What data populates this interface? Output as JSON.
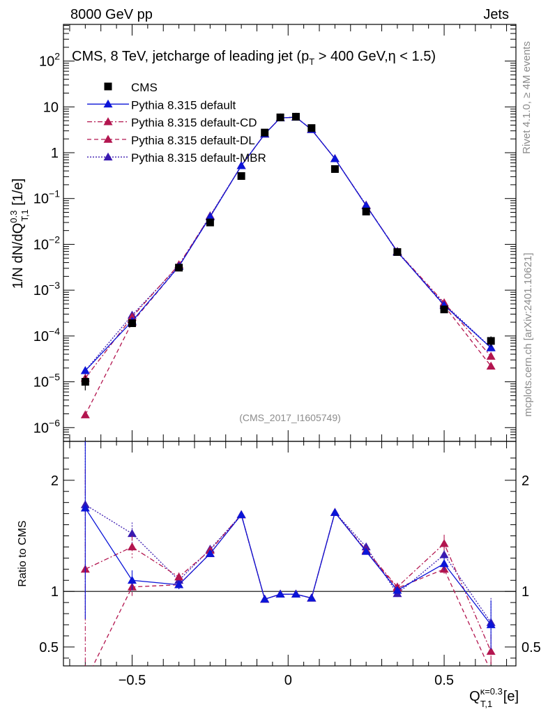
{
  "header": {
    "left": "8000 GeV pp",
    "right": "Jets"
  },
  "side_labels": {
    "rivet": "Rivet 4.1.0, ≥ 4M events",
    "mcplots": "mcplots.cern.ch [arXiv:2401.10621]"
  },
  "title": {
    "pre": "CMS, 8 TeV, jetcharge of leading jet (p",
    "sub": "T",
    "post": " > 400 GeV,η < 1.5)"
  },
  "reference_label": "(CMS_2017_I1605749)",
  "ylabel": {
    "pre": "1/N dN/dQ",
    "sup": "0.3",
    "sub": "T,1",
    "post": " [1/e]"
  },
  "ratio_ylabel": "Ratio to CMS",
  "xlabel": {
    "pre": "Q",
    "sup": "κ=0.3",
    "sub": "T,1",
    "post": " [e]"
  },
  "colors": {
    "data": "#000000",
    "default": "#0b15d8",
    "cd": "#b3154f",
    "dl": "#b3154f",
    "mbr": "#3a1ab0",
    "frame": "#000000",
    "side": "#8c8c8c"
  },
  "chart_data": {
    "type": "line",
    "title": "CMS, 8 TeV, jetcharge of leading jet (pT > 400 GeV,η < 1.5)",
    "xlim": [
      -0.72,
      0.73
    ],
    "main_ylim_log10": [
      -6.3,
      2.8
    ],
    "ratio_ylim": [
      0.33,
      2.35
    ],
    "x": [
      -0.65,
      -0.5,
      -0.35,
      -0.25,
      -0.15,
      -0.075,
      -0.025,
      0.025,
      0.075,
      0.15,
      0.25,
      0.35,
      0.5,
      0.65
    ],
    "x_ticks": {
      "positions": [
        -0.5,
        0,
        0.5
      ],
      "labels": [
        "−0.5",
        "0",
        "0.5"
      ]
    },
    "main_y_ticks": {
      "exps": [
        -6,
        -5,
        -4,
        -3,
        -2,
        -1,
        0,
        1,
        2
      ],
      "labels": [
        "10",
        "10",
        "10",
        "10",
        "10",
        "10",
        "1",
        "10",
        "10"
      ],
      "exp_labels": [
        "−6",
        "−5",
        "−4",
        "−3",
        "−2",
        "−1",
        "",
        "",
        "2"
      ]
    },
    "ratio_y_ticks": {
      "values": [
        0.5,
        1,
        2
      ],
      "labels": [
        "0.5",
        "1",
        "2"
      ]
    },
    "data": {
      "name": "CMS",
      "values": [
        1e-05,
        0.00019,
        0.0031,
        0.03,
        0.31,
        2.75,
        5.9,
        6.1,
        3.45,
        0.44,
        0.052,
        0.0068,
        0.00038,
        7.8e-05
      ],
      "errors": [
        3.5e-06,
        1.5e-05,
        0.00015,
        0.0012,
        0.008,
        0.06,
        0.1,
        0.1,
        0.07,
        0.01,
        0.0015,
        0.0002,
        3e-05,
        2e-05
      ]
    },
    "series": [
      {
        "name": "Pythia 8.315 default",
        "style": "solid",
        "values": [
          1.75e-05,
          0.00021,
          0.0033,
          0.04,
          0.52,
          2.55,
          5.75,
          5.95,
          3.2,
          0.74,
          0.07,
          0.0069,
          0.00047,
          5.5e-05
        ],
        "ratio": [
          1.75,
          1.1,
          1.06,
          1.34,
          1.69,
          0.93,
          0.975,
          0.975,
          0.94,
          1.71,
          1.36,
          1.01,
          1.25,
          0.7
        ],
        "ratio_err": [
          1.0,
          0.09,
          0.04,
          0.02,
          0.01,
          0.005,
          0.005,
          0.005,
          0.005,
          0.01,
          0.02,
          0.03,
          0.06,
          0.22
        ]
      },
      {
        "name": "Pythia 8.315 default-CD",
        "style": "dashdot",
        "values": [
          1.2e-05,
          0.00026,
          0.0036,
          0.041,
          0.52,
          2.55,
          5.75,
          5.95,
          3.2,
          0.74,
          0.071,
          0.007,
          0.00053,
          3.6e-05
        ],
        "ratio": [
          1.2,
          1.4,
          1.13,
          1.37,
          1.69,
          0.93,
          0.975,
          0.975,
          0.94,
          1.71,
          1.37,
          1.04,
          1.43,
          0.46
        ],
        "ratio_err": [
          0.9,
          0.1,
          0.04,
          0.02,
          0.01,
          0.005,
          0.005,
          0.005,
          0.005,
          0.01,
          0.02,
          0.03,
          0.08,
          0.15
        ]
      },
      {
        "name": "Pythia 8.315 default-DL",
        "style": "dashed",
        "values": [
          1.9e-06,
          0.000198,
          0.0033,
          0.04,
          0.52,
          2.55,
          5.75,
          5.95,
          3.2,
          0.74,
          0.07,
          0.007,
          0.00046,
          2.2e-05
        ],
        "ratio": [
          0.19,
          1.04,
          1.06,
          1.34,
          1.69,
          0.93,
          0.975,
          0.975,
          0.94,
          1.71,
          1.36,
          1.03,
          1.2,
          0.28
        ],
        "ratio_err": [
          0.1,
          0.08,
          0.04,
          0.02,
          0.01,
          0.005,
          0.005,
          0.005,
          0.005,
          0.01,
          0.02,
          0.03,
          0.06,
          0.1
        ]
      },
      {
        "name": "Pythia 8.315 default-MBR",
        "style": "dotted",
        "values": [
          1.75e-05,
          0.000285,
          0.0034,
          0.042,
          0.52,
          2.55,
          5.75,
          5.95,
          3.2,
          0.74,
          0.072,
          0.0067,
          0.0005,
          5.6e-05
        ],
        "ratio": [
          1.78,
          1.52,
          1.1,
          1.38,
          1.69,
          0.93,
          0.975,
          0.975,
          0.94,
          1.71,
          1.4,
          0.98,
          1.33,
          0.72
        ],
        "ratio_err": [
          1.0,
          0.1,
          0.04,
          0.02,
          0.01,
          0.005,
          0.005,
          0.005,
          0.005,
          0.01,
          0.02,
          0.03,
          0.07,
          0.22
        ]
      }
    ]
  }
}
